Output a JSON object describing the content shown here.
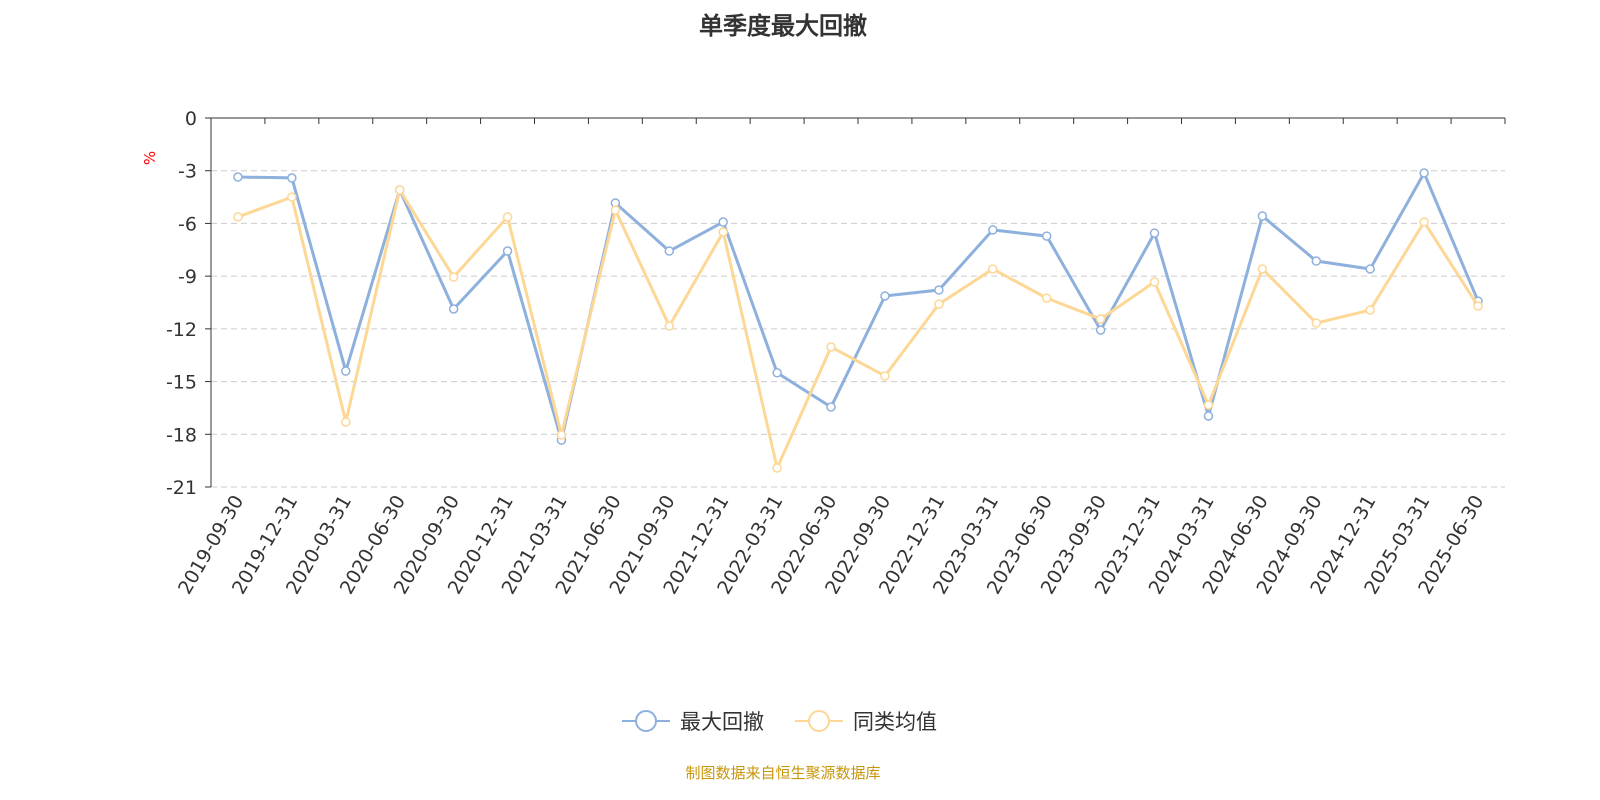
{
  "chart_data": {
    "type": "line",
    "title": "单季度最大回撤",
    "ylabel": "%",
    "xlabel": "",
    "ylim": [
      -21,
      0
    ],
    "yticks": [
      0,
      -3,
      -6,
      -9,
      -12,
      -15,
      -18,
      -21
    ],
    "grid": true,
    "legend_position": "bottom",
    "categories": [
      "2019-09-30",
      "2019-12-31",
      "2020-03-31",
      "2020-06-30",
      "2020-09-30",
      "2020-12-31",
      "2021-03-31",
      "2021-06-30",
      "2021-09-30",
      "2021-12-31",
      "2022-03-31",
      "2022-06-30",
      "2022-09-30",
      "2022-12-31",
      "2023-03-31",
      "2023-06-30",
      "2023-09-30",
      "2023-12-31",
      "2024-03-31",
      "2024-06-30",
      "2024-09-30",
      "2024-12-31",
      "2025-03-31",
      "2025-06-30"
    ],
    "series": [
      {
        "name": "最大回撤",
        "color": "#8eb0dc",
        "values": [
          -3.36,
          -3.41,
          -14.4,
          -4.1,
          -10.87,
          -7.57,
          -18.33,
          -4.84,
          -7.57,
          -5.92,
          -14.5,
          -16.45,
          -10.13,
          -9.79,
          -6.37,
          -6.72,
          -12.07,
          -6.55,
          -16.96,
          -5.58,
          -8.14,
          -8.59,
          -3.13,
          -10.42
        ]
      },
      {
        "name": "同类均值",
        "color": "#fdd795",
        "values": [
          -5.63,
          -4.5,
          -17.3,
          -4.1,
          -9.05,
          -5.63,
          -18.04,
          -5.24,
          -11.84,
          -6.49,
          -19.92,
          -13.03,
          -14.68,
          -10.59,
          -8.59,
          -10.25,
          -11.44,
          -9.33,
          -16.33,
          -8.59,
          -11.67,
          -10.93,
          -5.92,
          -10.7
        ]
      }
    ]
  },
  "footer": "制图数据来自恒生聚源数据库"
}
